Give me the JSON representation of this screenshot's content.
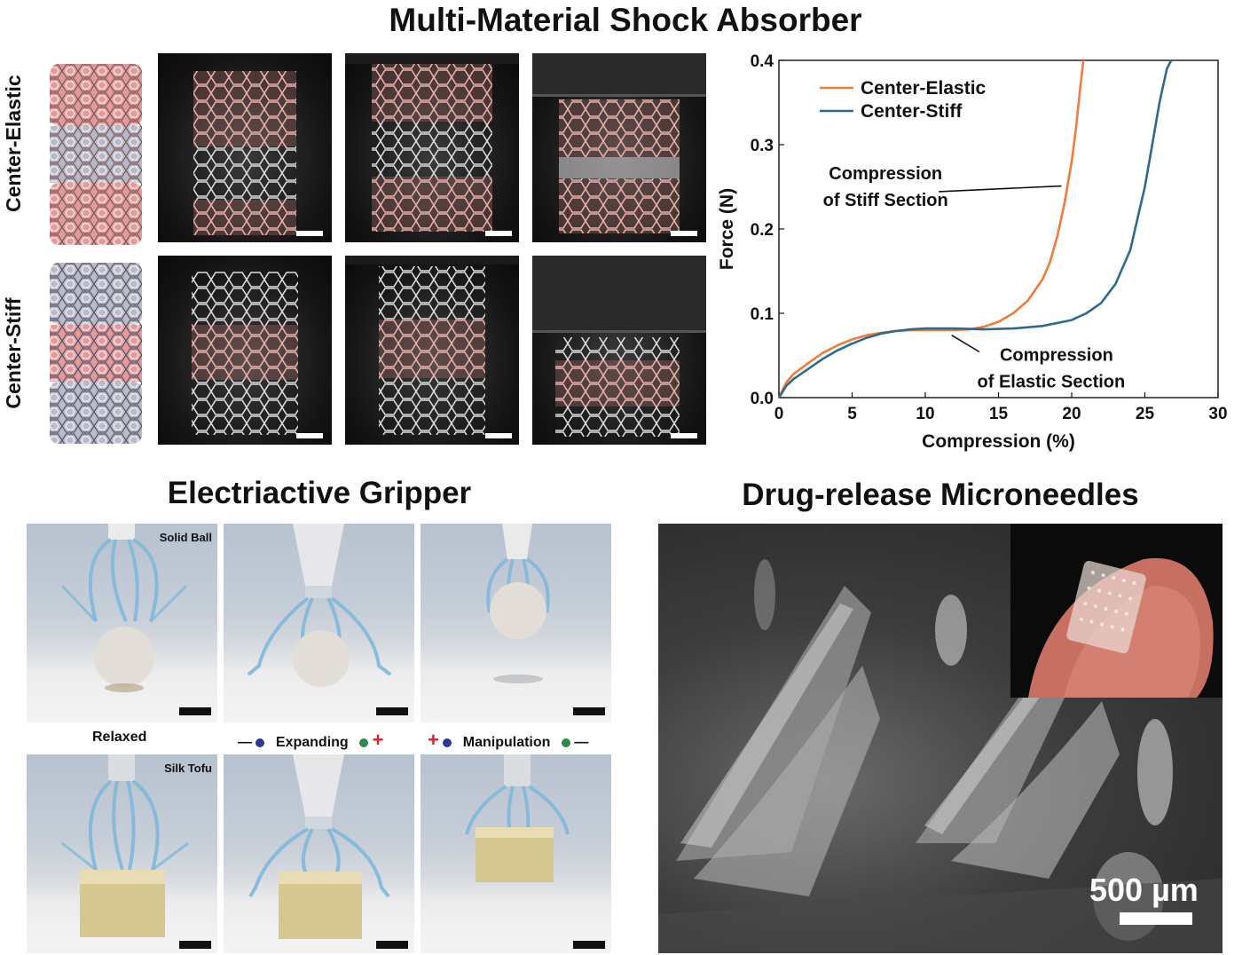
{
  "figure": {
    "top_title": "Multi-Material Shock Absorber",
    "gripper_title": "Electriactive Gripper",
    "needles_title": "Drug-release Microneedles"
  },
  "shock_absorber": {
    "rows": [
      {
        "label": "Center-Elastic",
        "center_color": "#b9b9c8",
        "outer_color": "#e8a0a0"
      },
      {
        "label": "Center-Stiff",
        "center_color": "#e8a0a0",
        "outer_color": "#b9b9c8"
      }
    ]
  },
  "chart_data": {
    "type": "line",
    "xlabel": "Compression (%)",
    "ylabel": "Force (N)",
    "xlim": [
      0,
      30
    ],
    "ylim": [
      0,
      0.4
    ],
    "xticks": [
      0,
      5,
      10,
      15,
      20,
      25,
      30
    ],
    "yticks": [
      0.0,
      0.1,
      0.2,
      0.3,
      0.4
    ],
    "ytick_labels": [
      "0.0",
      "0.1",
      "0.2",
      "0.3",
      "0.4"
    ],
    "grid": false,
    "legend_position": "top-left",
    "series": [
      {
        "name": "Center-Elastic",
        "color": "#f07b3a",
        "x": [
          0,
          0.5,
          1,
          2,
          3,
          4,
          5,
          6,
          7,
          8,
          9,
          10,
          11,
          12,
          13,
          14,
          15,
          16,
          17,
          18,
          18.5,
          19,
          19.5,
          20,
          20.3,
          20.6,
          20.8
        ],
        "y": [
          0,
          0.018,
          0.028,
          0.041,
          0.053,
          0.062,
          0.069,
          0.074,
          0.077,
          0.079,
          0.08,
          0.08,
          0.08,
          0.08,
          0.081,
          0.084,
          0.09,
          0.1,
          0.115,
          0.14,
          0.16,
          0.19,
          0.23,
          0.28,
          0.32,
          0.37,
          0.4
        ]
      },
      {
        "name": "Center-Stiff",
        "color": "#2e6a8e",
        "x": [
          0,
          0.5,
          1,
          2,
          3,
          4,
          5,
          6,
          7,
          8,
          9,
          10,
          12,
          14,
          16,
          18,
          20,
          21,
          22,
          23,
          24,
          25,
          25.5,
          26,
          26.5,
          26.8
        ],
        "y": [
          0,
          0.014,
          0.022,
          0.034,
          0.046,
          0.056,
          0.064,
          0.071,
          0.076,
          0.079,
          0.081,
          0.082,
          0.082,
          0.081,
          0.082,
          0.085,
          0.092,
          0.1,
          0.112,
          0.135,
          0.175,
          0.25,
          0.3,
          0.35,
          0.39,
          0.4
        ]
      }
    ],
    "annotations": [
      {
        "text_lines": [
          "Compression",
          "of Stiff Section"
        ],
        "x": 14.8,
        "y": 0.238
      },
      {
        "text_lines": [
          "Compression",
          "of Elastic Section"
        ],
        "x": 18.6,
        "y": 0.05
      }
    ]
  },
  "gripper": {
    "labels": {
      "solid_ball": "Solid Ball",
      "silk_tofu": "Silk Tofu",
      "relaxed": "Relaxed",
      "expanding": "Expanding",
      "manipulation": "Manipulation",
      "minus": "—",
      "plus": "+"
    }
  },
  "microneedles": {
    "scale_label": "500 µm"
  }
}
